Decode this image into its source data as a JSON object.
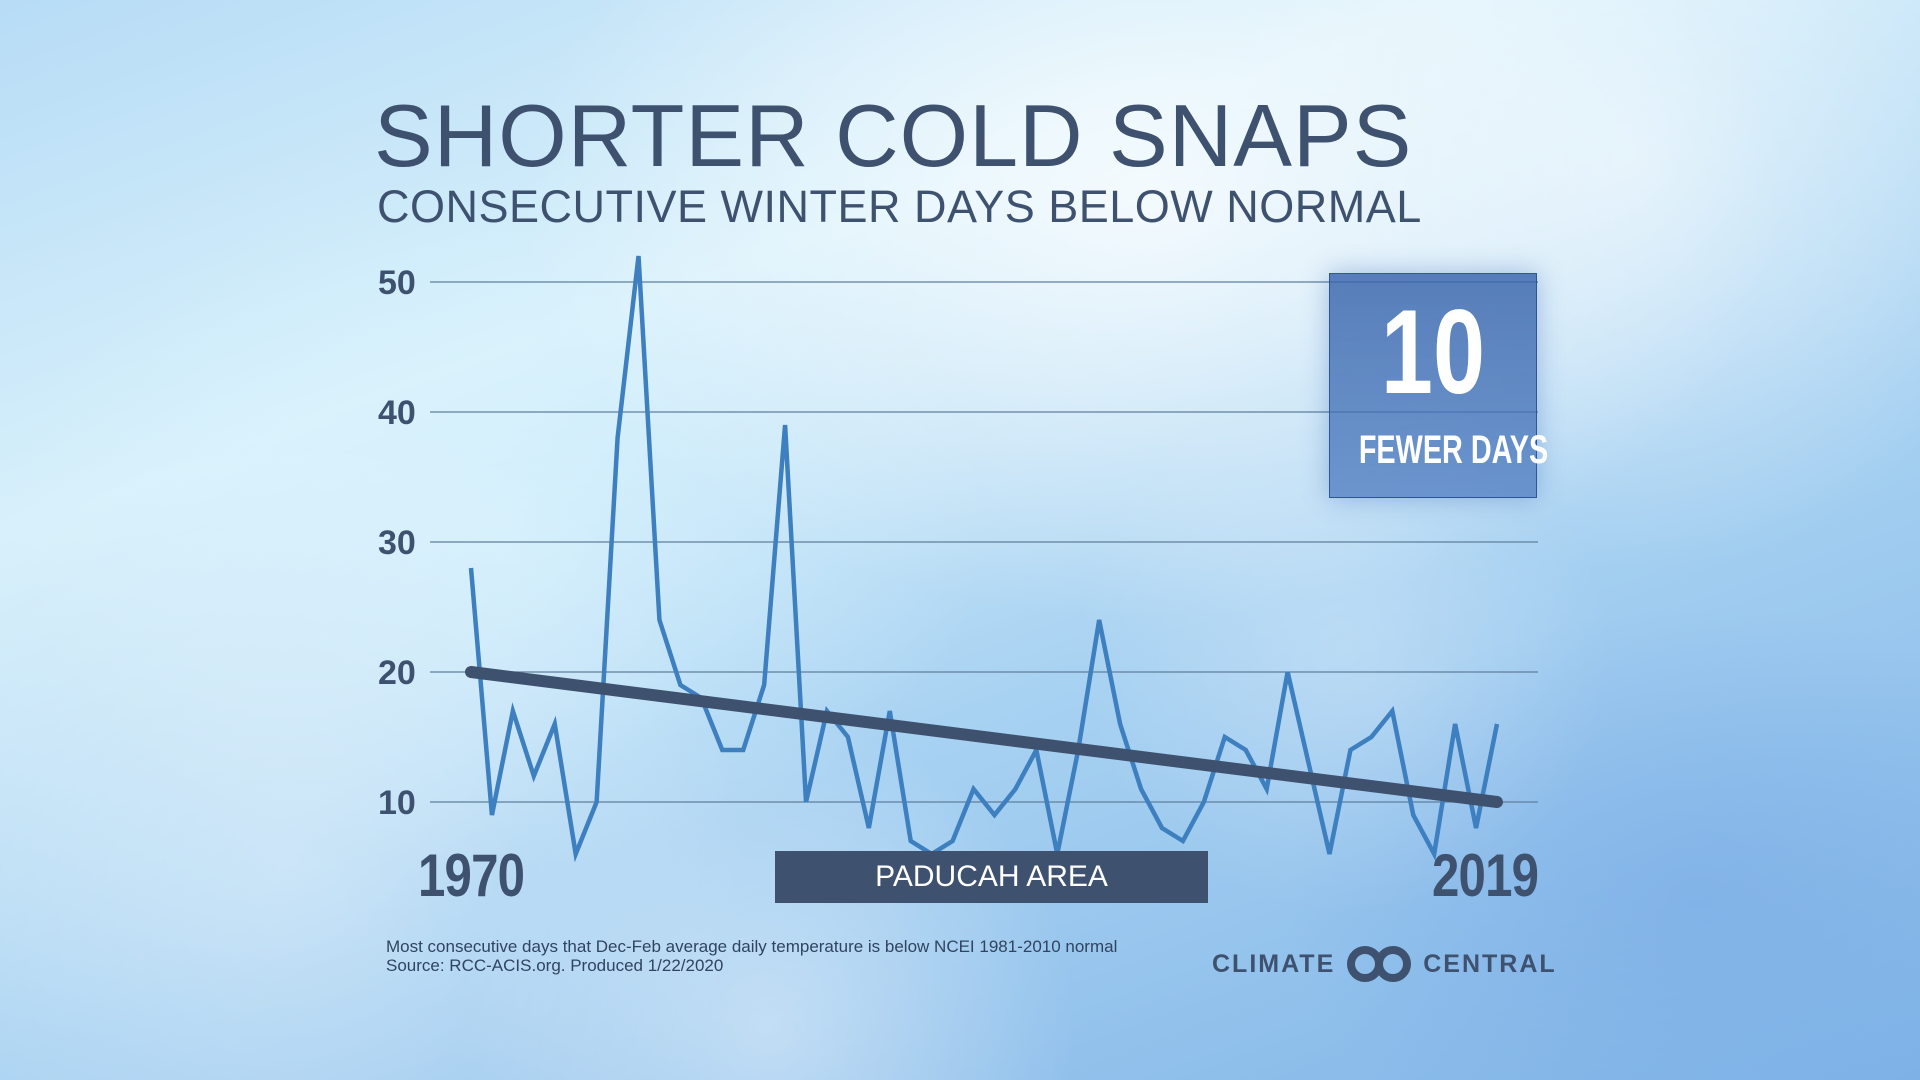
{
  "title": "SHORTER COLD SNAPS",
  "subtitle": "CONSECUTIVE WINTER DAYS BELOW NORMAL",
  "callout": {
    "number": "10",
    "label": "FEWER DAYS"
  },
  "location_label": "PADUCAH AREA",
  "footnote": {
    "line1": "Most consecutive days that  Dec-Feb average daily temperature is  below NCEI 1981-2010 normal",
    "line2": "Source: RCC-ACIS.org. Produced 1/22/2020"
  },
  "logo": {
    "left": "CLIMATE",
    "right": "CENTRAL"
  },
  "colors": {
    "series": "#3d7fbf",
    "trend": "#3e5270",
    "gridline": "#5f7f9c",
    "text": "#3e5270"
  },
  "chart_data": {
    "type": "line",
    "x_start_label": "1970",
    "x_end_label": "2019",
    "y_ticks": [
      10,
      20,
      30,
      40,
      50
    ],
    "ylim": [
      4,
      54
    ],
    "grid": true,
    "x": [
      1970,
      1971,
      1972,
      1973,
      1974,
      1975,
      1976,
      1977,
      1978,
      1979,
      1980,
      1981,
      1982,
      1983,
      1984,
      1985,
      1986,
      1987,
      1988,
      1989,
      1990,
      1991,
      1992,
      1993,
      1994,
      1995,
      1996,
      1997,
      1998,
      1999,
      2000,
      2001,
      2002,
      2003,
      2004,
      2005,
      2006,
      2007,
      2008,
      2009,
      2010,
      2011,
      2012,
      2013,
      2014,
      2015,
      2016,
      2017,
      2018,
      2019
    ],
    "series": [
      {
        "values": [
          28,
          9,
          17,
          12,
          16,
          6,
          10,
          38,
          52,
          24,
          19,
          18,
          14,
          14,
          19,
          39,
          10,
          17,
          15,
          8,
          17,
          7,
          6,
          7,
          11,
          9,
          11,
          14,
          6,
          14,
          24,
          16,
          11,
          8,
          7,
          10,
          15,
          14,
          11,
          20,
          13,
          6,
          14,
          15,
          17,
          9,
          6,
          16,
          8,
          16
        ]
      }
    ],
    "trend": {
      "start": [
        1970,
        20
      ],
      "end": [
        2019,
        10
      ]
    }
  }
}
